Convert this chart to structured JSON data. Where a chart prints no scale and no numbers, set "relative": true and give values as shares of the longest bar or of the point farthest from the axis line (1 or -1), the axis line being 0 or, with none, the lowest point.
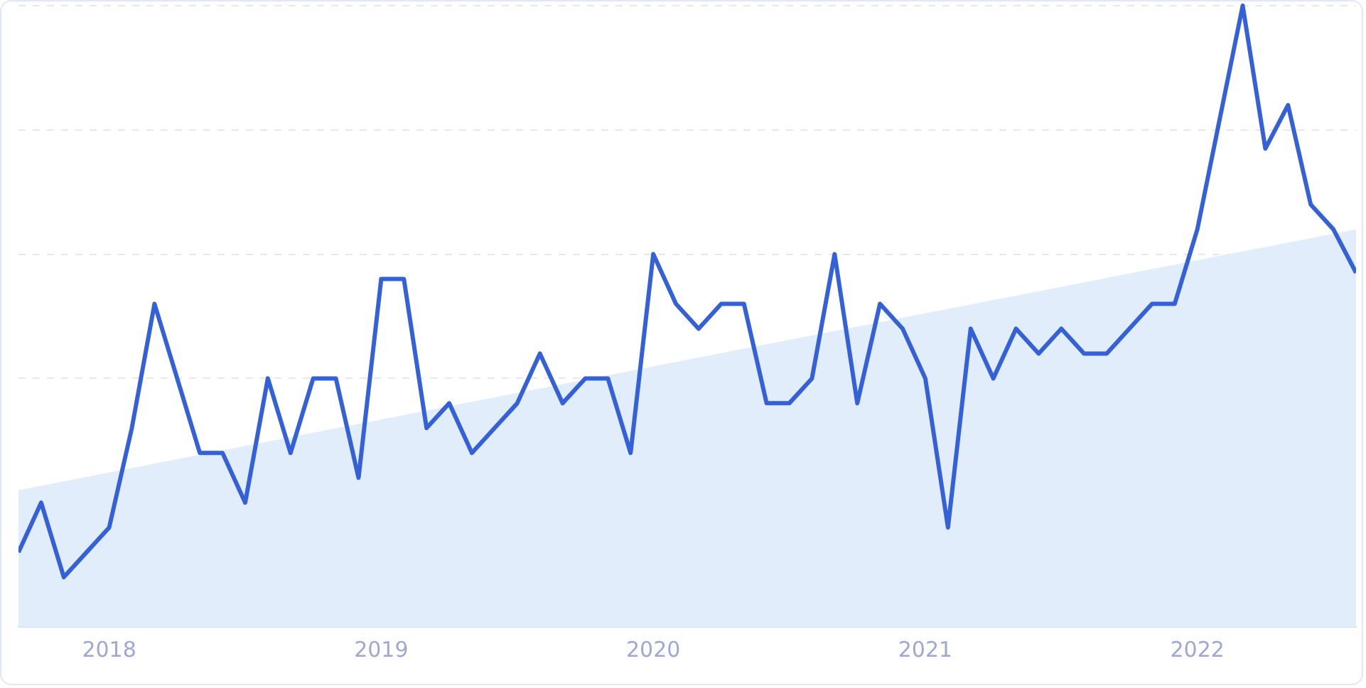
{
  "chart_data": {
    "type": "line",
    "relative": true,
    "xlim": [
      "2017-09",
      "2022-08"
    ],
    "xticks": [
      "2018",
      "2019",
      "2020",
      "2021",
      "2022"
    ],
    "grid": "y",
    "tick_labels": "x",
    "legend": false,
    "x": [
      "2017-09",
      "2017-10",
      "2017-11",
      "2017-12",
      "2018-01",
      "2018-02",
      "2018-03",
      "2018-04",
      "2018-05",
      "2018-06",
      "2018-07",
      "2018-08",
      "2018-09",
      "2018-10",
      "2018-11",
      "2018-12",
      "2019-01",
      "2019-02",
      "2019-03",
      "2019-04",
      "2019-05",
      "2019-06",
      "2019-07",
      "2019-08",
      "2019-09",
      "2019-10",
      "2019-11",
      "2019-12",
      "2020-01",
      "2020-02",
      "2020-03",
      "2020-04",
      "2020-05",
      "2020-06",
      "2020-07",
      "2020-08",
      "2020-09",
      "2020-10",
      "2020-11",
      "2020-12",
      "2021-01",
      "2021-02",
      "2021-03",
      "2021-04",
      "2021-05",
      "2021-06",
      "2021-07",
      "2021-08",
      "2021-09",
      "2021-10",
      "2021-11",
      "2021-12",
      "2022-01",
      "2022-02",
      "2022-03",
      "2022-04",
      "2022-05",
      "2022-06",
      "2022-07",
      "2022-08"
    ],
    "series": [
      {
        "type": "area",
        "x": [
          "2017-09",
          "2022-08"
        ],
        "color": "#e2edfb",
        "values": [
          0.22,
          0.64
        ]
      },
      {
        "color": "#3461d8",
        "values": [
          0.12,
          0.2,
          0.08,
          0.12,
          0.16,
          0.32,
          0.52,
          0.4,
          0.28,
          0.28,
          0.2,
          0.4,
          0.28,
          0.4,
          0.4,
          0.24,
          0.56,
          0.56,
          0.32,
          0.36,
          0.28,
          0.32,
          0.36,
          0.44,
          0.36,
          0.4,
          0.4,
          0.28,
          0.6,
          0.52,
          0.48,
          0.52,
          0.52,
          0.36,
          0.36,
          0.4,
          0.6,
          0.36,
          0.52,
          0.48,
          0.4,
          0.16,
          0.48,
          0.4,
          0.48,
          0.44,
          0.48,
          0.44,
          0.44,
          0.48,
          0.52,
          0.52,
          0.64,
          0.82,
          1,
          0.77,
          0.84,
          0.68,
          0.64,
          0.57
        ]
      }
    ]
  }
}
